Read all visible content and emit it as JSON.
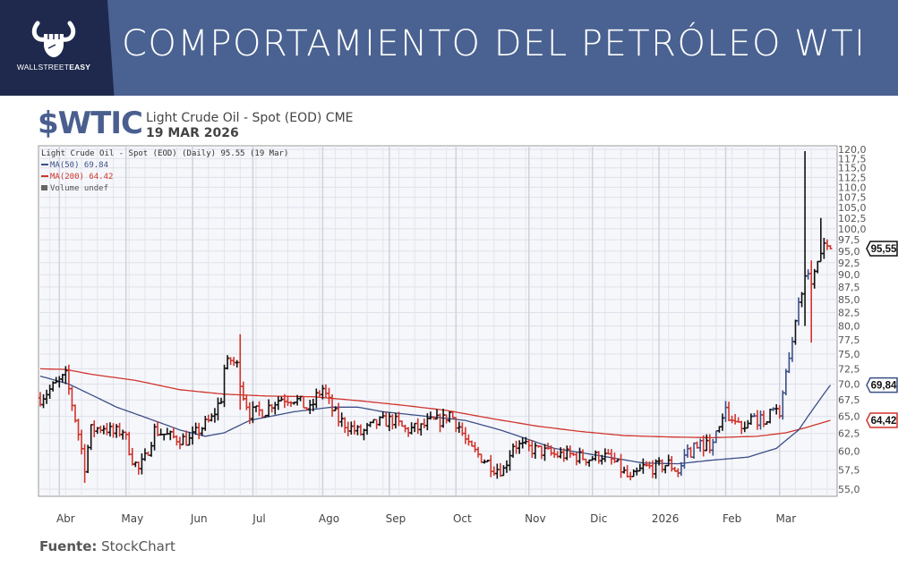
{
  "header": {
    "logo_text_regular": "WALLSTREET",
    "logo_text_bold": "EASY",
    "title": "COMPORTAMIENTO DEL PETRÓLEO WTI"
  },
  "ticker": {
    "symbol": "$WTIC",
    "description": "Light Crude Oil - Spot (EOD) CME",
    "date": "19 MAR 2026"
  },
  "source": {
    "label": "Fuente:",
    "value": "StockChart"
  },
  "colors": {
    "up": "#111111",
    "down": "#d0342c",
    "ma50": "#3b4f86",
    "ma200": "#d0342c",
    "header_dark": "#1f294d",
    "header_blue": "#4a6291"
  },
  "chart_data": {
    "type": "ohlc",
    "title": "Light Crude Oil - Spot (EOD) (Daily) 95.55 (19 Mar)",
    "legend": [
      {
        "name": "MA(50) 69.84",
        "color": "#3b4f86"
      },
      {
        "name": "MA(200) 64.42",
        "color": "#d0342c"
      },
      {
        "name": "Volume undef",
        "color": "#666666"
      }
    ],
    "y_scale": "log",
    "ylim": [
      55,
      120
    ],
    "y_ticks": [
      "120,0",
      "117,5",
      "115,0",
      "112,5",
      "110,0",
      "107,5",
      "105,0",
      "102,5",
      "100,0",
      "97,5",
      "95,0",
      "92,5",
      "90,0",
      "87,5",
      "85,0",
      "82,5",
      "80,0",
      "77,5",
      "75,0",
      "72,5",
      "70,0",
      "67,5",
      "65,0",
      "62,5",
      "60,0",
      "57,5",
      "55,0"
    ],
    "x_unit": "trading day",
    "xlim": [
      0,
      250
    ],
    "months": [
      {
        "label": "Abr",
        "t": 8
      },
      {
        "label": "May",
        "t": 29
      },
      {
        "label": "Jun",
        "t": 50
      },
      {
        "label": "Jul",
        "t": 69
      },
      {
        "label": "Ago",
        "t": 91
      },
      {
        "label": "Sep",
        "t": 112
      },
      {
        "label": "Oct",
        "t": 133
      },
      {
        "label": "Nov",
        "t": 156
      },
      {
        "label": "Dic",
        "t": 176
      },
      {
        "label": "2026",
        "t": 197
      },
      {
        "label": "Feb",
        "t": 218
      },
      {
        "label": "Mar",
        "t": 235
      }
    ],
    "close_points": [
      [
        0,
        67.8
      ],
      [
        8,
        71.3
      ],
      [
        12,
        62.5
      ],
      [
        14,
        58
      ],
      [
        16,
        63
      ],
      [
        20,
        63.5
      ],
      [
        23,
        62.5
      ],
      [
        26,
        63
      ],
      [
        29,
        59
      ],
      [
        31,
        57.5
      ],
      [
        33,
        59
      ],
      [
        36,
        63
      ],
      [
        41,
        62
      ],
      [
        47,
        61.5
      ],
      [
        50,
        63
      ],
      [
        54,
        64.6
      ],
      [
        57,
        67.8
      ],
      [
        58,
        72.6
      ],
      [
        60,
        74
      ],
      [
        62,
        73
      ],
      [
        64,
        68.3
      ],
      [
        66,
        65.5
      ],
      [
        71,
        65.9
      ],
      [
        73,
        67
      ],
      [
        76,
        67.8
      ],
      [
        80,
        67.8
      ],
      [
        85,
        65.9
      ],
      [
        87,
        68
      ],
      [
        89,
        69.3
      ],
      [
        92,
        66
      ],
      [
        94,
        64.5
      ],
      [
        99,
        63
      ],
      [
        101,
        62.5
      ],
      [
        106,
        64
      ],
      [
        111,
        64.5
      ],
      [
        115,
        63
      ],
      [
        120,
        63.3
      ],
      [
        122,
        64
      ],
      [
        127,
        64.5
      ],
      [
        129,
        65.5
      ],
      [
        132,
        63.5
      ],
      [
        135,
        60.5
      ],
      [
        141,
        58.5
      ],
      [
        143,
        57.8
      ],
      [
        146,
        57.5
      ],
      [
        149,
        61
      ],
      [
        153,
        60.5
      ],
      [
        158,
        60
      ],
      [
        162,
        59.5
      ],
      [
        167,
        59.5
      ],
      [
        173,
        59
      ],
      [
        177,
        59.5
      ],
      [
        181,
        58.5
      ],
      [
        186,
        56.1
      ],
      [
        190,
        57.8
      ],
      [
        194,
        57.8
      ],
      [
        198,
        58.3
      ],
      [
        201,
        57.3
      ],
      [
        204,
        59.5
      ],
      [
        207,
        61
      ],
      [
        211,
        61
      ],
      [
        214,
        63
      ],
      [
        216,
        65.5
      ],
      [
        219,
        64.3
      ],
      [
        222,
        63.6
      ],
      [
        225,
        64.8
      ],
      [
        228,
        64.3
      ],
      [
        230,
        66
      ],
      [
        233,
        65.5
      ],
      [
        235,
        71.3
      ],
      [
        237,
        76.2
      ],
      [
        239,
        83.8
      ],
      [
        241,
        91
      ],
      [
        243,
        87
      ],
      [
        245,
        93
      ],
      [
        247,
        97
      ],
      [
        249,
        95.55
      ]
    ],
    "extremes": [
      {
        "t": 14,
        "high": 61,
        "low": 55.8
      },
      {
        "t": 8,
        "high": 72.5,
        "low": 70
      },
      {
        "t": 63,
        "high": 78.5,
        "low": 66
      },
      {
        "t": 241,
        "high": 119.5,
        "low": 80
      },
      {
        "t": 243,
        "high": 93,
        "low": 77
      },
      {
        "t": 246,
        "high": 102.5,
        "low": 93
      }
    ],
    "ma50": {
      "t": [
        0,
        9,
        24,
        44,
        52,
        58,
        66,
        80,
        92,
        100,
        108,
        120,
        134,
        145,
        162,
        179,
        190,
        201,
        212,
        223,
        232,
        239,
        244,
        249
      ],
      "values": [
        71.3,
        70.0,
        66.4,
        63.0,
        62.1,
        62.6,
        64.4,
        65.7,
        66.4,
        66.4,
        65.7,
        65.1,
        64.4,
        63.0,
        60.4,
        59.2,
        58.4,
        58.3,
        58.8,
        59.2,
        60.4,
        63.0,
        66.4,
        69.84
      ]
    },
    "ma200": {
      "t": [
        0,
        8,
        16,
        30,
        44,
        58,
        72,
        86,
        100,
        114,
        128,
        142,
        156,
        170,
        184,
        198,
        212,
        226,
        235,
        241,
        249
      ],
      "values": [
        72.5,
        72.4,
        71.6,
        70.6,
        69.1,
        68.4,
        68.1,
        68.0,
        67.4,
        66.7,
        65.9,
        64.7,
        63.6,
        62.8,
        62.2,
        62.0,
        61.9,
        62.1,
        62.6,
        63.3,
        64.42
      ]
    },
    "last_labels": {
      "price": "95,55",
      "ma50": "69,84",
      "ma200": "64,42"
    },
    "last_values": {
      "price": 95.55,
      "ma50": 69.84,
      "ma200": 64.42
    }
  }
}
